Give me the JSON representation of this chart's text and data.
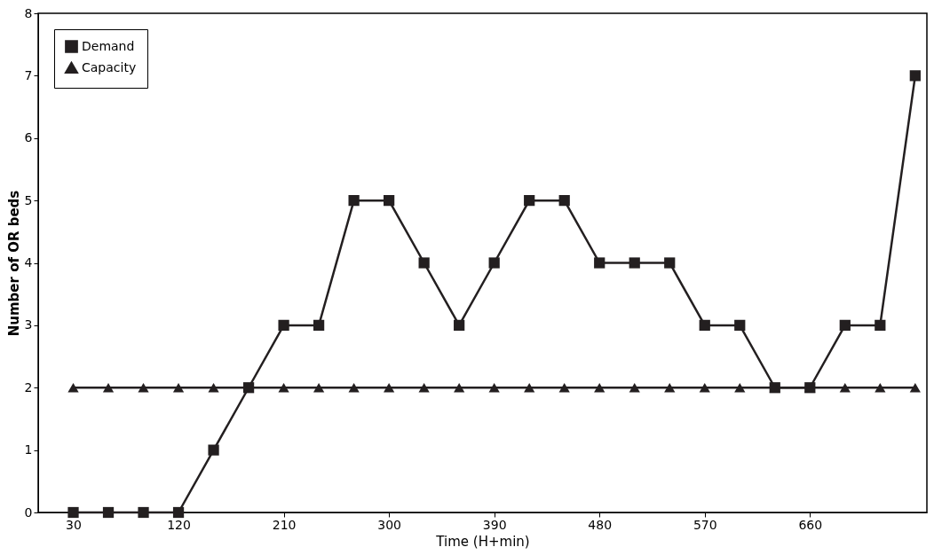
{
  "chart_data": {
    "type": "line",
    "xlabel": "Time (H+min)",
    "ylabel": "Number of OR beds",
    "x": [
      30,
      60,
      90,
      120,
      150,
      180,
      210,
      240,
      270,
      300,
      330,
      360,
      390,
      420,
      450,
      480,
      510,
      540,
      570,
      600,
      630,
      660,
      690,
      720,
      750
    ],
    "series": [
      {
        "name": "Demand",
        "color": "#231f20",
        "marker": "square",
        "values": [
          0,
          0,
          0,
          0,
          1,
          2,
          3,
          3,
          5,
          5,
          4,
          3,
          4,
          5,
          5,
          4,
          4,
          4,
          3,
          3,
          2,
          2,
          3,
          3,
          7
        ]
      },
      {
        "name": "Capacity",
        "color": "#231f20",
        "marker": "triangle",
        "values": [
          2,
          2,
          2,
          2,
          2,
          2,
          2,
          2,
          2,
          2,
          2,
          2,
          2,
          2,
          2,
          2,
          2,
          2,
          2,
          2,
          2,
          2,
          2,
          2,
          2
        ]
      }
    ],
    "xlim": [
      0,
      760
    ],
    "xticks": [
      30,
      120,
      210,
      300,
      390,
      480,
      570,
      660
    ],
    "ylim": [
      0,
      8
    ],
    "yticks": [
      0,
      1,
      2,
      3,
      4,
      5,
      6,
      7,
      8
    ],
    "grid": false,
    "legend": "top left",
    "line_style": "solid"
  }
}
